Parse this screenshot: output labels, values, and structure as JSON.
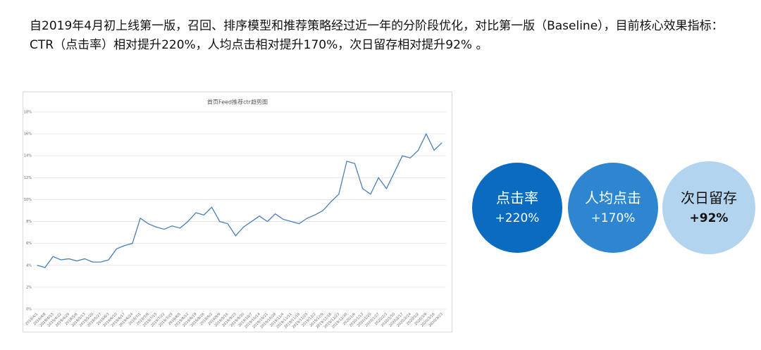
{
  "intro": "自2019年4月初上线第一版，召回、排序模型和推荐策略经过近一年的分阶段优化，对比第一版（Baseline），目前核心效果指标：CTR（点击率）相对提升220%，人均点击相对提升170%，次日留存相对提升92% 。",
  "chart_data": {
    "type": "line",
    "title": "首页Feed推荐ctr趋势图",
    "categories": [
      "2019/4/1",
      "2019/4/8",
      "2019/4/15",
      "2019/4/22",
      "2019/4/29",
      "2019/5/6",
      "2019/5/13",
      "2019/5/20",
      "2019/5/27",
      "2019/6/3",
      "2019/6/10",
      "2019/6/17",
      "2019/6/24",
      "2019/7/1",
      "2019/7/8",
      "2019/7/15",
      "2019/7/22",
      "2019/7/29",
      "2019/8/5",
      "2019/8/12",
      "2019/8/19",
      "2019/8/26",
      "2019/9/2",
      "2019/9/9",
      "2019/9/16",
      "2019/9/23",
      "2019/9/30",
      "2019/10/7",
      "2019/10/14",
      "2019/10/21",
      "2019/10/28",
      "2019/11/4",
      "2019/11/11",
      "2019/11/18",
      "2019/11/25",
      "2019/12/2",
      "2019/12/9",
      "2019/12/16",
      "2019/12/23",
      "2019/12/30",
      "2020/1/6",
      "2020/1/13",
      "2020/1/20",
      "2020/1/27",
      "2020/2/3",
      "2020/2/10",
      "2020/2/17",
      "2020/2/24",
      "2020/3/2",
      "2020/3/9",
      "2020/3/16",
      "2020/3/23"
    ],
    "values": [
      4.0,
      3.8,
      4.8,
      4.5,
      4.6,
      4.4,
      4.6,
      4.3,
      4.3,
      4.5,
      5.5,
      5.8,
      6.0,
      8.3,
      7.8,
      7.5,
      7.3,
      7.6,
      7.4,
      8.0,
      8.8,
      8.6,
      9.3,
      8.0,
      7.8,
      6.7,
      7.5,
      8.0,
      8.5,
      8.0,
      8.7,
      8.2,
      8.0,
      7.8,
      8.3,
      8.6,
      9.0,
      9.8,
      10.5,
      13.5,
      13.3,
      11.0,
      10.5,
      12.0,
      11.0,
      12.5,
      14.0,
      13.8,
      14.5,
      16.0,
      14.5,
      15.2
    ],
    "color": "#4a7ebb",
    "ylim": [
      0,
      18
    ],
    "yticks": [
      {
        "value": 0,
        "label": "0%"
      },
      {
        "value": 2,
        "label": "2%"
      },
      {
        "value": 4,
        "label": "4%"
      },
      {
        "value": 6,
        "label": "6%"
      },
      {
        "value": 8,
        "label": "8%"
      },
      {
        "value": 10,
        "label": "10%"
      },
      {
        "value": 12,
        "label": "12%"
      },
      {
        "value": 14,
        "label": "14%"
      },
      {
        "value": 16,
        "label": "16%"
      },
      {
        "value": 18,
        "label": "18%"
      }
    ],
    "grid": true
  },
  "metrics": [
    {
      "label": "点击率",
      "value": "+220%",
      "color": "#0b6bbf"
    },
    {
      "label": "人均点击",
      "value": "+170%",
      "color": "#2e86d0"
    },
    {
      "label": "次日留存",
      "value": "+92%",
      "color": "#b3d4ef"
    }
  ]
}
